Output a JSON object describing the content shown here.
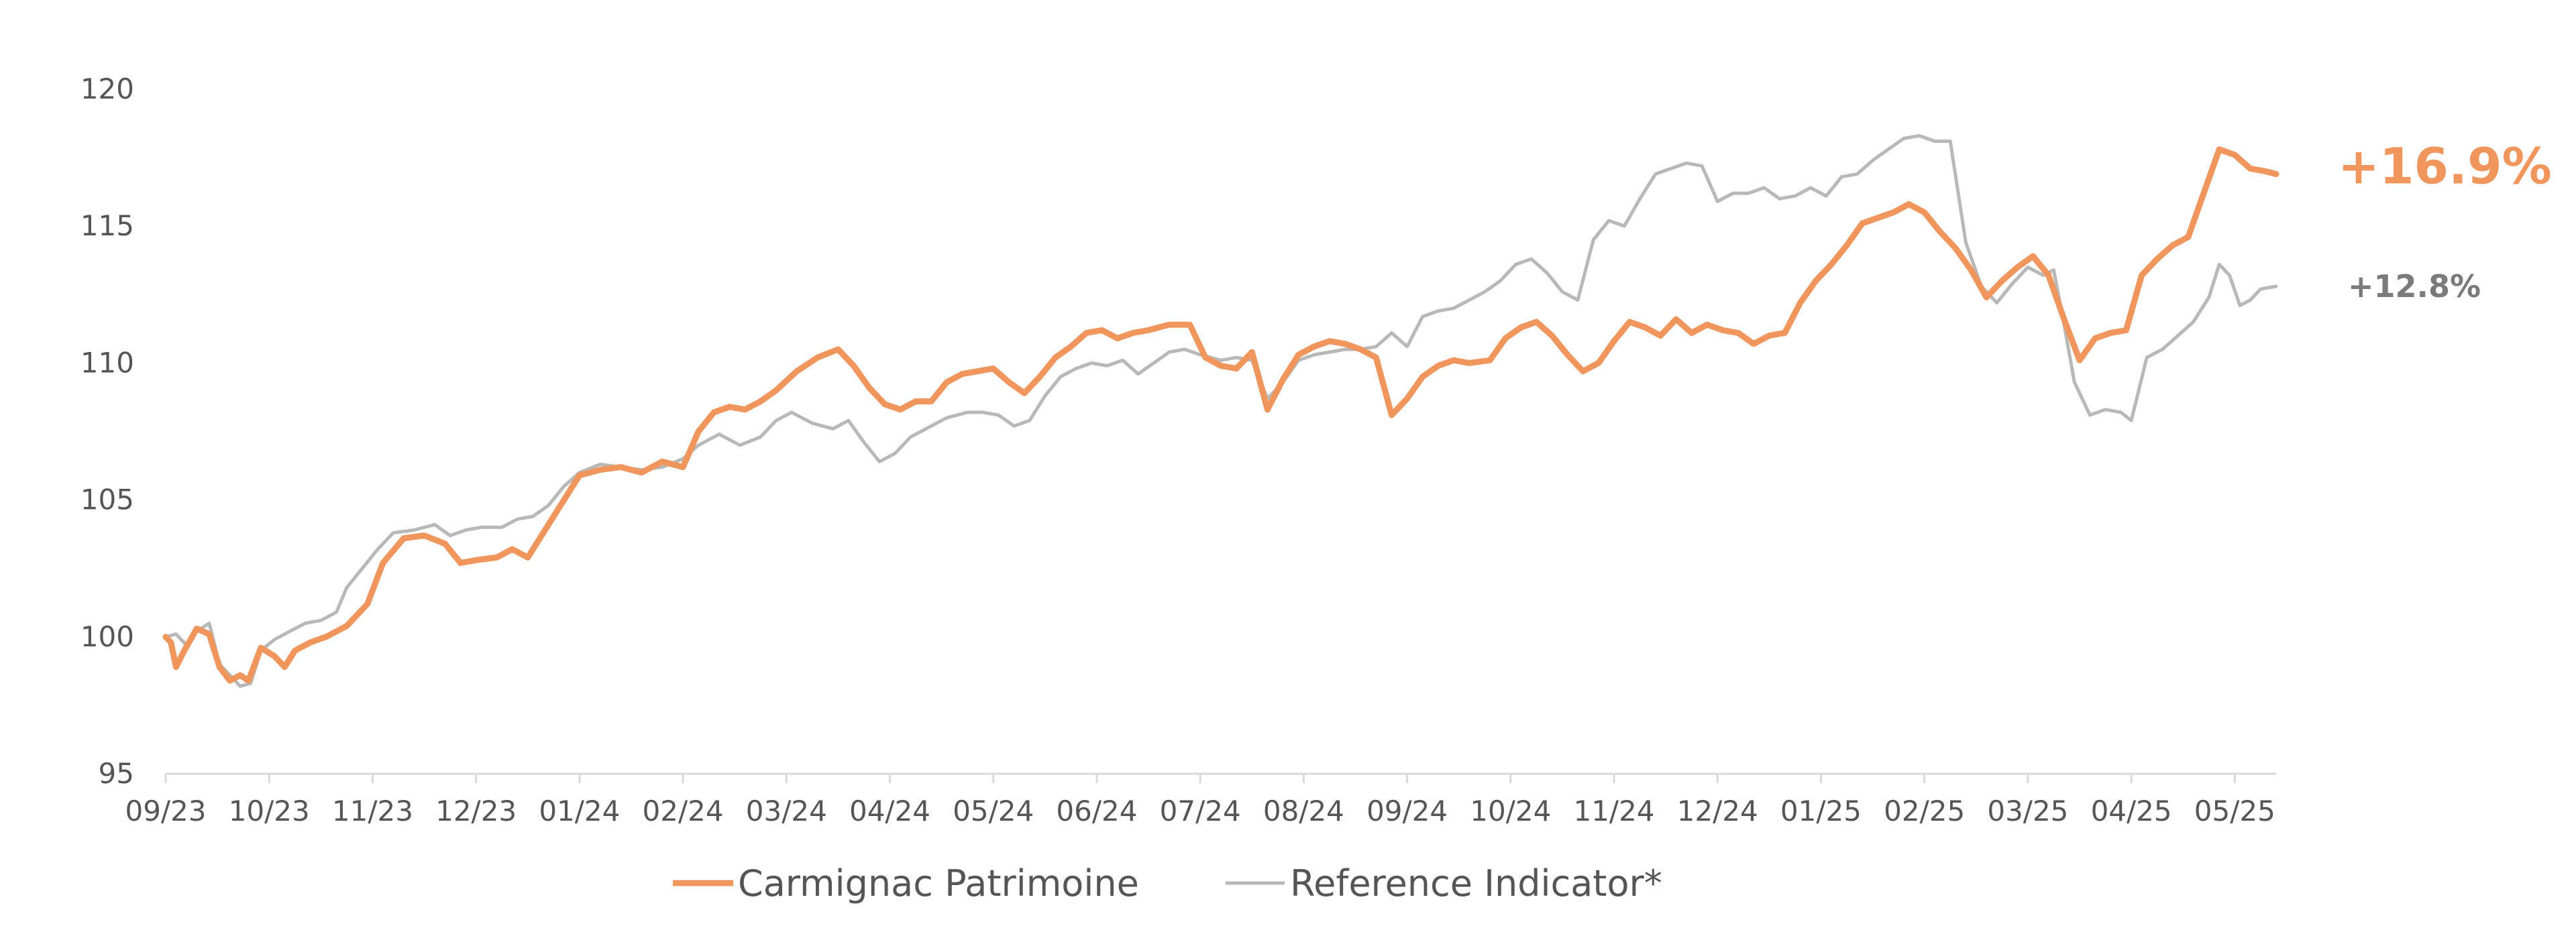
{
  "chart_data": {
    "type": "line",
    "title": "",
    "xlabel": "",
    "ylabel": "",
    "ylim": [
      95,
      120
    ],
    "yticks": [
      95,
      100,
      105,
      110,
      115,
      120
    ],
    "x_tick_labels": [
      "09/23",
      "10/23",
      "11/23",
      "12/23",
      "01/24",
      "02/24",
      "03/24",
      "04/24",
      "05/24",
      "06/24",
      "07/24",
      "08/24",
      "09/24",
      "10/24",
      "11/24",
      "12/24",
      "01/25",
      "02/25",
      "03/25",
      "04/25",
      "05/25"
    ],
    "grid": false,
    "legend_position": "bottom",
    "series": [
      {
        "name": "Carmignac Patrimoine",
        "color": "#f0955c",
        "end_label": "+16.9%",
        "points": [
          [
            0,
            100.0
          ],
          [
            0.05,
            99.8
          ],
          [
            0.1,
            98.9
          ],
          [
            0.18,
            99.5
          ],
          [
            0.3,
            100.3
          ],
          [
            0.42,
            100.1
          ],
          [
            0.52,
            98.9
          ],
          [
            0.62,
            98.4
          ],
          [
            0.72,
            98.6
          ],
          [
            0.8,
            98.4
          ],
          [
            0.92,
            99.6
          ],
          [
            1.05,
            99.3
          ],
          [
            1.15,
            98.9
          ],
          [
            1.25,
            99.5
          ],
          [
            1.4,
            99.8
          ],
          [
            1.55,
            100.0
          ],
          [
            1.75,
            100.4
          ],
          [
            1.95,
            101.2
          ],
          [
            2.1,
            102.7
          ],
          [
            2.3,
            103.6
          ],
          [
            2.5,
            103.7
          ],
          [
            2.7,
            103.4
          ],
          [
            2.85,
            102.7
          ],
          [
            3.0,
            102.8
          ],
          [
            3.2,
            102.9
          ],
          [
            3.35,
            103.2
          ],
          [
            3.5,
            102.9
          ],
          [
            3.65,
            103.8
          ],
          [
            3.8,
            104.7
          ],
          [
            4.0,
            105.9
          ],
          [
            4.2,
            106.1
          ],
          [
            4.4,
            106.2
          ],
          [
            4.6,
            106.0
          ],
          [
            4.8,
            106.4
          ],
          [
            5.0,
            106.2
          ],
          [
            5.15,
            107.5
          ],
          [
            5.3,
            108.2
          ],
          [
            5.45,
            108.4
          ],
          [
            5.6,
            108.3
          ],
          [
            5.75,
            108.6
          ],
          [
            5.9,
            109.0
          ],
          [
            6.1,
            109.7
          ],
          [
            6.3,
            110.2
          ],
          [
            6.5,
            110.5
          ],
          [
            6.65,
            109.9
          ],
          [
            6.8,
            109.1
          ],
          [
            6.95,
            108.5
          ],
          [
            7.1,
            108.3
          ],
          [
            7.25,
            108.6
          ],
          [
            7.4,
            108.6
          ],
          [
            7.55,
            109.3
          ],
          [
            7.7,
            109.6
          ],
          [
            7.85,
            109.7
          ],
          [
            8.0,
            109.8
          ],
          [
            8.15,
            109.3
          ],
          [
            8.3,
            108.9
          ],
          [
            8.45,
            109.5
          ],
          [
            8.6,
            110.2
          ],
          [
            8.75,
            110.6
          ],
          [
            8.9,
            111.1
          ],
          [
            9.05,
            111.2
          ],
          [
            9.2,
            110.9
          ],
          [
            9.35,
            111.1
          ],
          [
            9.5,
            111.2
          ],
          [
            9.7,
            111.4
          ],
          [
            9.9,
            111.4
          ],
          [
            10.05,
            110.2
          ],
          [
            10.2,
            109.9
          ],
          [
            10.35,
            109.8
          ],
          [
            10.5,
            110.4
          ],
          [
            10.65,
            108.3
          ],
          [
            10.8,
            109.4
          ],
          [
            10.95,
            110.3
          ],
          [
            11.1,
            110.6
          ],
          [
            11.25,
            110.8
          ],
          [
            11.4,
            110.7
          ],
          [
            11.55,
            110.5
          ],
          [
            11.7,
            110.2
          ],
          [
            11.85,
            108.1
          ],
          [
            12.0,
            108.7
          ],
          [
            12.15,
            109.5
          ],
          [
            12.3,
            109.9
          ],
          [
            12.45,
            110.1
          ],
          [
            12.6,
            110.0
          ],
          [
            12.8,
            110.1
          ],
          [
            12.95,
            110.9
          ],
          [
            13.1,
            111.3
          ],
          [
            13.25,
            111.5
          ],
          [
            13.4,
            111.0
          ],
          [
            13.55,
            110.3
          ],
          [
            13.7,
            109.7
          ],
          [
            13.85,
            110.0
          ],
          [
            14.0,
            110.8
          ],
          [
            14.15,
            111.5
          ],
          [
            14.3,
            111.3
          ],
          [
            14.45,
            111.0
          ],
          [
            14.6,
            111.6
          ],
          [
            14.75,
            111.1
          ],
          [
            14.9,
            111.4
          ],
          [
            15.05,
            111.2
          ],
          [
            15.2,
            111.1
          ],
          [
            15.35,
            110.7
          ],
          [
            15.5,
            111.0
          ],
          [
            15.65,
            111.1
          ],
          [
            15.8,
            112.2
          ],
          [
            15.95,
            113.0
          ],
          [
            16.1,
            113.6
          ],
          [
            16.25,
            114.3
          ],
          [
            16.4,
            115.1
          ],
          [
            16.55,
            115.3
          ],
          [
            16.7,
            115.5
          ],
          [
            16.85,
            115.8
          ],
          [
            17.0,
            115.5
          ],
          [
            17.15,
            114.8
          ],
          [
            17.3,
            114.2
          ],
          [
            17.45,
            113.4
          ],
          [
            17.6,
            112.4
          ],
          [
            17.75,
            113.0
          ],
          [
            17.9,
            113.5
          ],
          [
            18.05,
            113.9
          ],
          [
            18.2,
            113.2
          ],
          [
            18.35,
            111.6
          ],
          [
            18.5,
            110.1
          ],
          [
            18.65,
            110.9
          ],
          [
            18.8,
            111.1
          ],
          [
            18.95,
            111.2
          ],
          [
            19.1,
            113.2
          ],
          [
            19.25,
            113.8
          ],
          [
            19.4,
            114.3
          ],
          [
            19.55,
            114.6
          ],
          [
            19.7,
            116.2
          ],
          [
            19.85,
            117.8
          ],
          [
            20.0,
            117.6
          ],
          [
            20.15,
            117.1
          ],
          [
            20.3,
            117.0
          ],
          [
            20.4,
            116.9
          ]
        ]
      },
      {
        "name": "Reference Indicator*",
        "color": "#b8b8b8",
        "end_label": "+12.8%",
        "points": [
          [
            0,
            100.0
          ],
          [
            0.1,
            100.1
          ],
          [
            0.2,
            99.7
          ],
          [
            0.3,
            100.2
          ],
          [
            0.42,
            100.5
          ],
          [
            0.52,
            99.0
          ],
          [
            0.62,
            98.6
          ],
          [
            0.72,
            98.2
          ],
          [
            0.82,
            98.3
          ],
          [
            0.92,
            99.5
          ],
          [
            1.05,
            99.9
          ],
          [
            1.2,
            100.2
          ],
          [
            1.35,
            100.5
          ],
          [
            1.5,
            100.6
          ],
          [
            1.65,
            100.9
          ],
          [
            1.75,
            101.8
          ],
          [
            1.9,
            102.5
          ],
          [
            2.05,
            103.2
          ],
          [
            2.2,
            103.8
          ],
          [
            2.4,
            103.9
          ],
          [
            2.6,
            104.1
          ],
          [
            2.75,
            103.7
          ],
          [
            2.9,
            103.9
          ],
          [
            3.05,
            104.0
          ],
          [
            3.25,
            104.0
          ],
          [
            3.4,
            104.3
          ],
          [
            3.55,
            104.4
          ],
          [
            3.7,
            104.8
          ],
          [
            3.85,
            105.5
          ],
          [
            4.0,
            106.0
          ],
          [
            4.2,
            106.3
          ],
          [
            4.4,
            106.2
          ],
          [
            4.6,
            106.1
          ],
          [
            4.8,
            106.2
          ],
          [
            5.0,
            106.5
          ],
          [
            5.15,
            107.0
          ],
          [
            5.35,
            107.4
          ],
          [
            5.55,
            107.0
          ],
          [
            5.75,
            107.3
          ],
          [
            5.9,
            107.9
          ],
          [
            6.05,
            108.2
          ],
          [
            6.25,
            107.8
          ],
          [
            6.45,
            107.6
          ],
          [
            6.6,
            107.9
          ],
          [
            6.75,
            107.1
          ],
          [
            6.9,
            106.4
          ],
          [
            7.05,
            106.7
          ],
          [
            7.2,
            107.3
          ],
          [
            7.35,
            107.6
          ],
          [
            7.55,
            108.0
          ],
          [
            7.75,
            108.2
          ],
          [
            7.9,
            108.2
          ],
          [
            8.05,
            108.1
          ],
          [
            8.2,
            107.7
          ],
          [
            8.35,
            107.9
          ],
          [
            8.5,
            108.8
          ],
          [
            8.65,
            109.5
          ],
          [
            8.8,
            109.8
          ],
          [
            8.95,
            110.0
          ],
          [
            9.1,
            109.9
          ],
          [
            9.25,
            110.1
          ],
          [
            9.4,
            109.6
          ],
          [
            9.55,
            110.0
          ],
          [
            9.7,
            110.4
          ],
          [
            9.85,
            110.5
          ],
          [
            10.0,
            110.3
          ],
          [
            10.2,
            110.1
          ],
          [
            10.35,
            110.2
          ],
          [
            10.5,
            110.1
          ],
          [
            10.65,
            108.7
          ],
          [
            10.8,
            109.3
          ],
          [
            10.95,
            110.1
          ],
          [
            11.1,
            110.3
          ],
          [
            11.25,
            110.4
          ],
          [
            11.4,
            110.5
          ],
          [
            11.55,
            110.5
          ],
          [
            11.7,
            110.6
          ],
          [
            11.85,
            111.1
          ],
          [
            12.0,
            110.6
          ],
          [
            12.15,
            111.7
          ],
          [
            12.3,
            111.9
          ],
          [
            12.45,
            112.0
          ],
          [
            12.6,
            112.3
          ],
          [
            12.75,
            112.6
          ],
          [
            12.9,
            113.0
          ],
          [
            13.05,
            113.6
          ],
          [
            13.2,
            113.8
          ],
          [
            13.35,
            113.3
          ],
          [
            13.5,
            112.6
          ],
          [
            13.65,
            112.3
          ],
          [
            13.8,
            114.5
          ],
          [
            13.95,
            115.2
          ],
          [
            14.1,
            115.0
          ],
          [
            14.25,
            116.0
          ],
          [
            14.4,
            116.9
          ],
          [
            14.55,
            117.1
          ],
          [
            14.7,
            117.3
          ],
          [
            14.85,
            117.2
          ],
          [
            15.0,
            115.9
          ],
          [
            15.15,
            116.2
          ],
          [
            15.3,
            116.2
          ],
          [
            15.45,
            116.4
          ],
          [
            15.6,
            116.0
          ],
          [
            15.75,
            116.1
          ],
          [
            15.9,
            116.4
          ],
          [
            16.05,
            116.1
          ],
          [
            16.2,
            116.8
          ],
          [
            16.35,
            116.9
          ],
          [
            16.5,
            117.4
          ],
          [
            16.65,
            117.8
          ],
          [
            16.8,
            118.2
          ],
          [
            16.95,
            118.3
          ],
          [
            17.1,
            118.1
          ],
          [
            17.25,
            118.1
          ],
          [
            17.4,
            114.4
          ],
          [
            17.55,
            112.8
          ],
          [
            17.7,
            112.2
          ],
          [
            17.85,
            112.9
          ],
          [
            18.0,
            113.5
          ],
          [
            18.15,
            113.2
          ],
          [
            18.25,
            113.4
          ],
          [
            18.35,
            111.4
          ],
          [
            18.45,
            109.3
          ],
          [
            18.6,
            108.1
          ],
          [
            18.75,
            108.3
          ],
          [
            18.9,
            108.2
          ],
          [
            19.0,
            107.9
          ],
          [
            19.15,
            110.2
          ],
          [
            19.3,
            110.5
          ],
          [
            19.45,
            111.0
          ],
          [
            19.6,
            111.5
          ],
          [
            19.75,
            112.4
          ],
          [
            19.85,
            113.6
          ],
          [
            19.95,
            113.2
          ],
          [
            20.05,
            112.1
          ],
          [
            20.15,
            112.3
          ],
          [
            20.25,
            112.7
          ],
          [
            20.4,
            112.8
          ]
        ]
      }
    ]
  }
}
